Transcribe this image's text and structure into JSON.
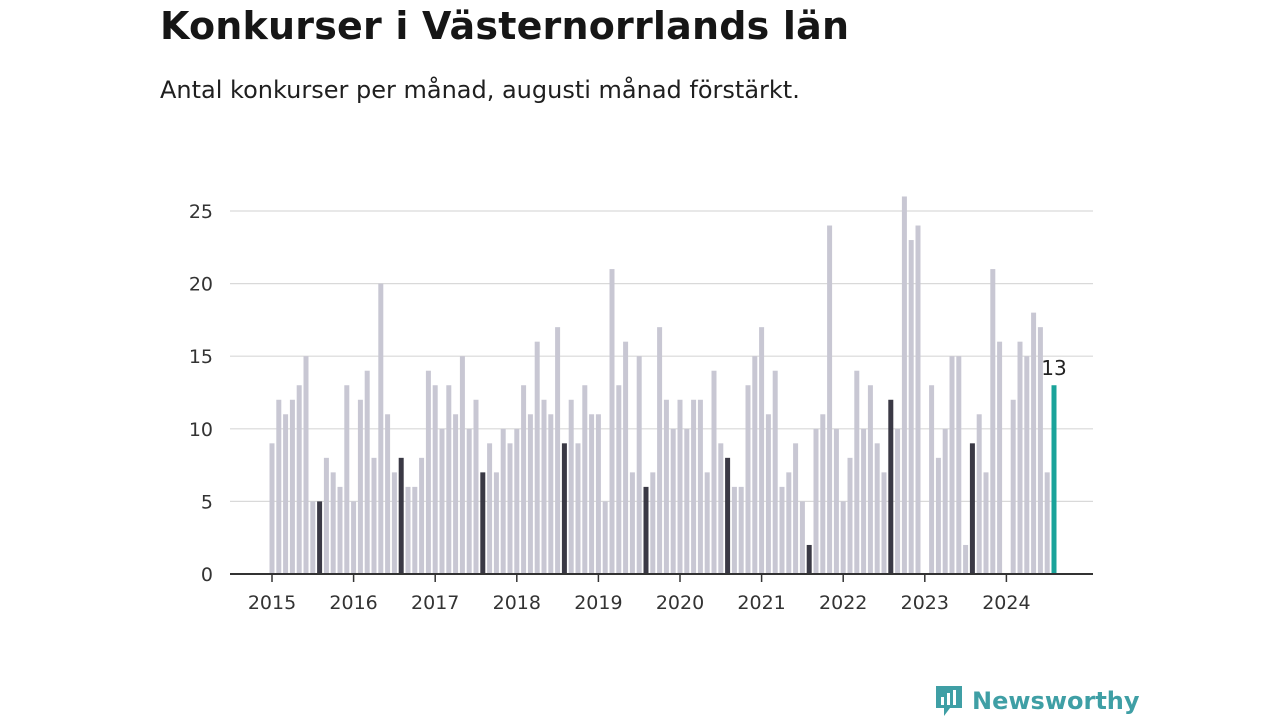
{
  "header": {
    "title": "Konkurser i Västernorrlands län",
    "subtitle": "Antal konkurser per månad, augusti månad förstärkt."
  },
  "brand": {
    "name": "Newsworthy",
    "icon": "newsworthy-logo-icon",
    "color": "#3f9fa5"
  },
  "chart_data": {
    "type": "bar",
    "start_month": "2015-01",
    "ylim": [
      0,
      26
    ],
    "yticks": [
      0,
      5,
      10,
      15,
      20,
      25
    ],
    "xtick_labels": [
      "2015",
      "2016",
      "2017",
      "2018",
      "2019",
      "2020",
      "2021",
      "2022",
      "2023",
      "2024"
    ],
    "grid": true,
    "colors": {
      "normal": "#c8c7d3",
      "august": "#3a3945",
      "latest": "#1aa39a",
      "grid": "#d9d9d9",
      "axis": "#333333"
    },
    "values": [
      9,
      12,
      11,
      12,
      13,
      15,
      5,
      5,
      8,
      7,
      6,
      13,
      5,
      12,
      14,
      8,
      20,
      11,
      7,
      8,
      6,
      6,
      8,
      14,
      13,
      10,
      13,
      11,
      15,
      10,
      12,
      7,
      9,
      7,
      10,
      9,
      10,
      13,
      11,
      16,
      12,
      11,
      17,
      9,
      12,
      9,
      13,
      11,
      11,
      5,
      21,
      13,
      16,
      7,
      15,
      6,
      7,
      17,
      12,
      10,
      12,
      10,
      12,
      12,
      7,
      14,
      9,
      8,
      6,
      6,
      13,
      15,
      17,
      11,
      14,
      6,
      7,
      9,
      5,
      2,
      10,
      11,
      24,
      10,
      5,
      8,
      14,
      10,
      13,
      9,
      7,
      12,
      10,
      26,
      23,
      24,
      0,
      13,
      8,
      10,
      15,
      15,
      2,
      9,
      11,
      7,
      21,
      16,
      0,
      12,
      16,
      15,
      18,
      17,
      7,
      13
    ],
    "highlight_label": "13"
  }
}
